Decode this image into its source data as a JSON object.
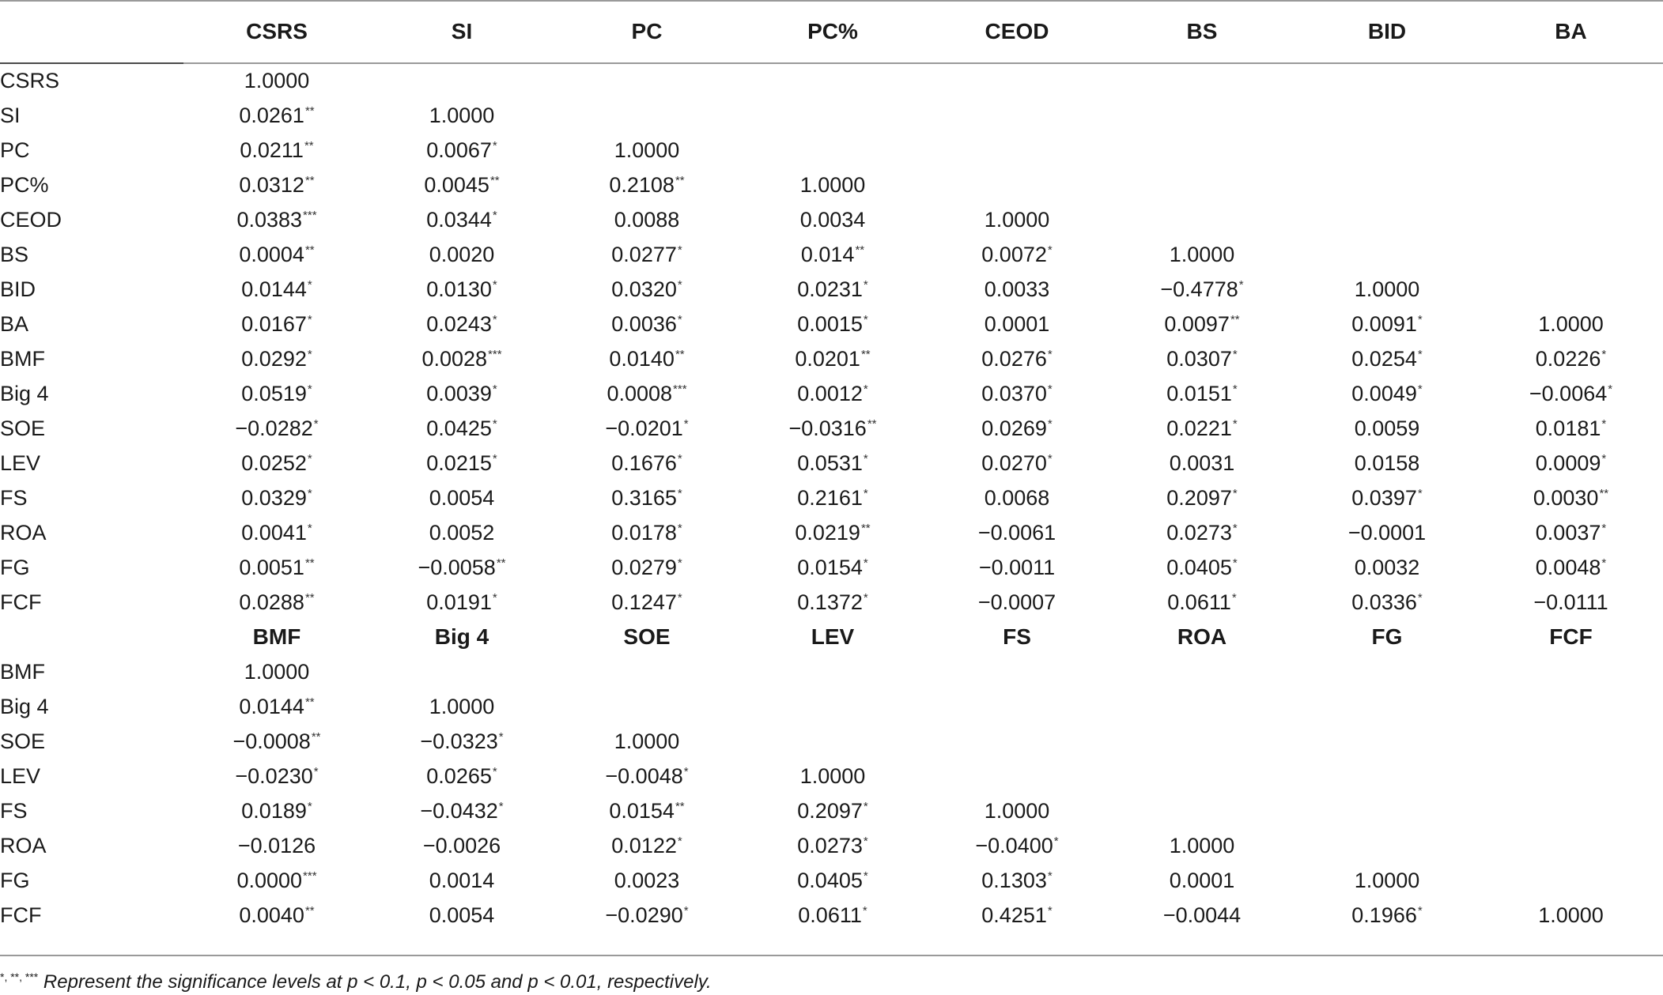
{
  "header_top": [
    "",
    "CSRS",
    "SI",
    "PC",
    "PC%",
    "CEOD",
    "BS",
    "BID",
    "BA"
  ],
  "rows_top": [
    {
      "label": "CSRS",
      "cells": [
        [
          "1.0000",
          ""
        ],
        [
          "",
          ""
        ],
        [
          "",
          ""
        ],
        [
          "",
          ""
        ],
        [
          "",
          ""
        ],
        [
          "",
          ""
        ],
        [
          "",
          ""
        ],
        [
          "",
          ""
        ]
      ]
    },
    {
      "label": "SI",
      "cells": [
        [
          "0.0261",
          "**"
        ],
        [
          "1.0000",
          ""
        ],
        [
          "",
          ""
        ],
        [
          "",
          ""
        ],
        [
          "",
          ""
        ],
        [
          "",
          ""
        ],
        [
          "",
          ""
        ],
        [
          "",
          ""
        ]
      ]
    },
    {
      "label": "PC",
      "cells": [
        [
          "0.0211",
          "**"
        ],
        [
          "0.0067",
          "*"
        ],
        [
          "1.0000",
          ""
        ],
        [
          "",
          ""
        ],
        [
          "",
          ""
        ],
        [
          "",
          ""
        ],
        [
          "",
          ""
        ],
        [
          "",
          ""
        ]
      ]
    },
    {
      "label": "PC%",
      "cells": [
        [
          "0.0312",
          "**"
        ],
        [
          "0.0045",
          "**"
        ],
        [
          "0.2108",
          "**"
        ],
        [
          "1.0000",
          ""
        ],
        [
          "",
          ""
        ],
        [
          "",
          ""
        ],
        [
          "",
          ""
        ],
        [
          "",
          ""
        ]
      ]
    },
    {
      "label": "CEOD",
      "cells": [
        [
          "0.0383",
          "***"
        ],
        [
          "0.0344",
          "*"
        ],
        [
          "0.0088",
          ""
        ],
        [
          "0.0034",
          ""
        ],
        [
          "1.0000",
          ""
        ],
        [
          "",
          ""
        ],
        [
          "",
          ""
        ],
        [
          "",
          ""
        ]
      ]
    },
    {
      "label": "BS",
      "cells": [
        [
          "0.0004",
          "**"
        ],
        [
          "0.0020",
          ""
        ],
        [
          "0.0277",
          "*"
        ],
        [
          "0.014",
          "**"
        ],
        [
          "0.0072",
          "*"
        ],
        [
          "1.0000",
          ""
        ],
        [
          "",
          ""
        ],
        [
          "",
          ""
        ]
      ]
    },
    {
      "label": "BID",
      "cells": [
        [
          "0.0144",
          "*"
        ],
        [
          "0.0130",
          "*"
        ],
        [
          "0.0320",
          "*"
        ],
        [
          "0.0231",
          "*"
        ],
        [
          "0.0033",
          ""
        ],
        [
          "−0.4778",
          "*"
        ],
        [
          "1.0000",
          ""
        ],
        [
          "",
          ""
        ]
      ]
    },
    {
      "label": "BA",
      "cells": [
        [
          "0.0167",
          "*"
        ],
        [
          "0.0243",
          "*"
        ],
        [
          "0.0036",
          "*"
        ],
        [
          "0.0015",
          "*"
        ],
        [
          "0.0001",
          ""
        ],
        [
          "0.0097",
          "**"
        ],
        [
          "0.0091",
          "*"
        ],
        [
          "1.0000",
          ""
        ]
      ]
    },
    {
      "label": "BMF",
      "cells": [
        [
          "0.0292",
          "*"
        ],
        [
          "0.0028",
          "***"
        ],
        [
          "0.0140",
          "**"
        ],
        [
          "0.0201",
          "**"
        ],
        [
          "0.0276",
          "*"
        ],
        [
          "0.0307",
          "*"
        ],
        [
          "0.0254",
          "*"
        ],
        [
          "0.0226",
          "*"
        ]
      ]
    },
    {
      "label": "Big 4",
      "cells": [
        [
          "0.0519",
          "*"
        ],
        [
          "0.0039",
          "*"
        ],
        [
          "0.0008",
          "***"
        ],
        [
          "0.0012",
          "*"
        ],
        [
          "0.0370",
          "*"
        ],
        [
          "0.0151",
          "*"
        ],
        [
          "0.0049",
          "*"
        ],
        [
          "−0.0064",
          "*"
        ]
      ]
    },
    {
      "label": "SOE",
      "cells": [
        [
          "−0.0282",
          "*"
        ],
        [
          "0.0425",
          "*"
        ],
        [
          "−0.0201",
          "*"
        ],
        [
          "−0.0316",
          "**"
        ],
        [
          "0.0269",
          "*"
        ],
        [
          "0.0221",
          "*"
        ],
        [
          "0.0059",
          ""
        ],
        [
          "0.0181",
          "*"
        ]
      ]
    },
    {
      "label": "LEV",
      "cells": [
        [
          "0.0252",
          "*"
        ],
        [
          "0.0215",
          "*"
        ],
        [
          "0.1676",
          "*"
        ],
        [
          "0.0531",
          "*"
        ],
        [
          "0.0270",
          "*"
        ],
        [
          "0.0031",
          ""
        ],
        [
          "0.0158",
          ""
        ],
        [
          "0.0009",
          "*"
        ]
      ]
    },
    {
      "label": "FS",
      "cells": [
        [
          "0.0329",
          "*"
        ],
        [
          "0.0054",
          ""
        ],
        [
          "0.3165",
          "*"
        ],
        [
          "0.2161",
          "*"
        ],
        [
          "0.0068",
          ""
        ],
        [
          "0.2097",
          "*"
        ],
        [
          "0.0397",
          "*"
        ],
        [
          "0.0030",
          "**"
        ]
      ]
    },
    {
      "label": "ROA",
      "cells": [
        [
          "0.0041",
          "*"
        ],
        [
          "0.0052",
          ""
        ],
        [
          "0.0178",
          "*"
        ],
        [
          "0.0219",
          "**"
        ],
        [
          "−0.0061",
          ""
        ],
        [
          "0.0273",
          "*"
        ],
        [
          "−0.0001",
          ""
        ],
        [
          "0.0037",
          "*"
        ]
      ]
    },
    {
      "label": "FG",
      "cells": [
        [
          "0.0051",
          "**"
        ],
        [
          "−0.0058",
          "**"
        ],
        [
          "0.0279",
          "*"
        ],
        [
          "0.0154",
          "*"
        ],
        [
          "−0.0011",
          ""
        ],
        [
          "0.0405",
          "*"
        ],
        [
          "0.0032",
          ""
        ],
        [
          "0.0048",
          "*"
        ]
      ]
    },
    {
      "label": "FCF",
      "cells": [
        [
          "0.0288",
          "**"
        ],
        [
          "0.0191",
          "*"
        ],
        [
          "0.1247",
          "*"
        ],
        [
          "0.1372",
          "*"
        ],
        [
          "−0.0007",
          ""
        ],
        [
          "0.0611",
          "*"
        ],
        [
          "0.0336",
          "*"
        ],
        [
          "−0.0111",
          ""
        ]
      ]
    }
  ],
  "header_bottom": [
    "",
    "BMF",
    "Big 4",
    "SOE",
    "LEV",
    "FS",
    "ROA",
    "FG",
    "FCF"
  ],
  "rows_bottom": [
    {
      "label": "BMF",
      "cells": [
        [
          "1.0000",
          ""
        ],
        [
          "",
          ""
        ],
        [
          "",
          ""
        ],
        [
          "",
          ""
        ],
        [
          "",
          ""
        ],
        [
          "",
          ""
        ],
        [
          "",
          ""
        ],
        [
          "",
          ""
        ]
      ]
    },
    {
      "label": "Big 4",
      "cells": [
        [
          "0.0144",
          "**"
        ],
        [
          "1.0000",
          ""
        ],
        [
          "",
          ""
        ],
        [
          "",
          ""
        ],
        [
          "",
          ""
        ],
        [
          "",
          ""
        ],
        [
          "",
          ""
        ],
        [
          "",
          ""
        ]
      ]
    },
    {
      "label": "SOE",
      "cells": [
        [
          "−0.0008",
          "**"
        ],
        [
          "−0.0323",
          "*"
        ],
        [
          "1.0000",
          ""
        ],
        [
          "",
          ""
        ],
        [
          "",
          ""
        ],
        [
          "",
          ""
        ],
        [
          "",
          ""
        ],
        [
          "",
          ""
        ]
      ]
    },
    {
      "label": "LEV",
      "cells": [
        [
          "−0.0230",
          "*"
        ],
        [
          "0.0265",
          "*"
        ],
        [
          "−0.0048",
          "*"
        ],
        [
          "1.0000",
          ""
        ],
        [
          "",
          ""
        ],
        [
          "",
          ""
        ],
        [
          "",
          ""
        ],
        [
          "",
          ""
        ]
      ]
    },
    {
      "label": "FS",
      "cells": [
        [
          "0.0189",
          "*"
        ],
        [
          "−0.0432",
          "*"
        ],
        [
          "0.0154",
          "**"
        ],
        [
          "0.2097",
          "*"
        ],
        [
          "1.0000",
          ""
        ],
        [
          "",
          ""
        ],
        [
          "",
          ""
        ],
        [
          "",
          ""
        ]
      ]
    },
    {
      "label": "ROA",
      "cells": [
        [
          "−0.0126",
          ""
        ],
        [
          "−0.0026",
          ""
        ],
        [
          "0.0122",
          "*"
        ],
        [
          "0.0273",
          "*"
        ],
        [
          "−0.0400",
          "*"
        ],
        [
          "1.0000",
          ""
        ],
        [
          "",
          ""
        ],
        [
          "",
          ""
        ]
      ]
    },
    {
      "label": "FG",
      "cells": [
        [
          "0.0000",
          "***"
        ],
        [
          "0.0014",
          ""
        ],
        [
          "0.0023",
          ""
        ],
        [
          "0.0405",
          "*"
        ],
        [
          "0.1303",
          "*"
        ],
        [
          "0.0001",
          ""
        ],
        [
          "1.0000",
          ""
        ],
        [
          "",
          ""
        ]
      ]
    },
    {
      "label": "FCF",
      "cells": [
        [
          "0.0040",
          "**"
        ],
        [
          "0.0054",
          ""
        ],
        [
          "−0.0290",
          "*"
        ],
        [
          "0.0611",
          "*"
        ],
        [
          "0.4251",
          "*"
        ],
        [
          "−0.0044",
          ""
        ],
        [
          "0.1966",
          "*"
        ],
        [
          "1.0000",
          ""
        ]
      ]
    }
  ],
  "footnote": {
    "stars": "*, **, ***",
    "text": " Represent the significance levels at p < 0.1, p < 0.05 and p < 0.01, respectively."
  }
}
